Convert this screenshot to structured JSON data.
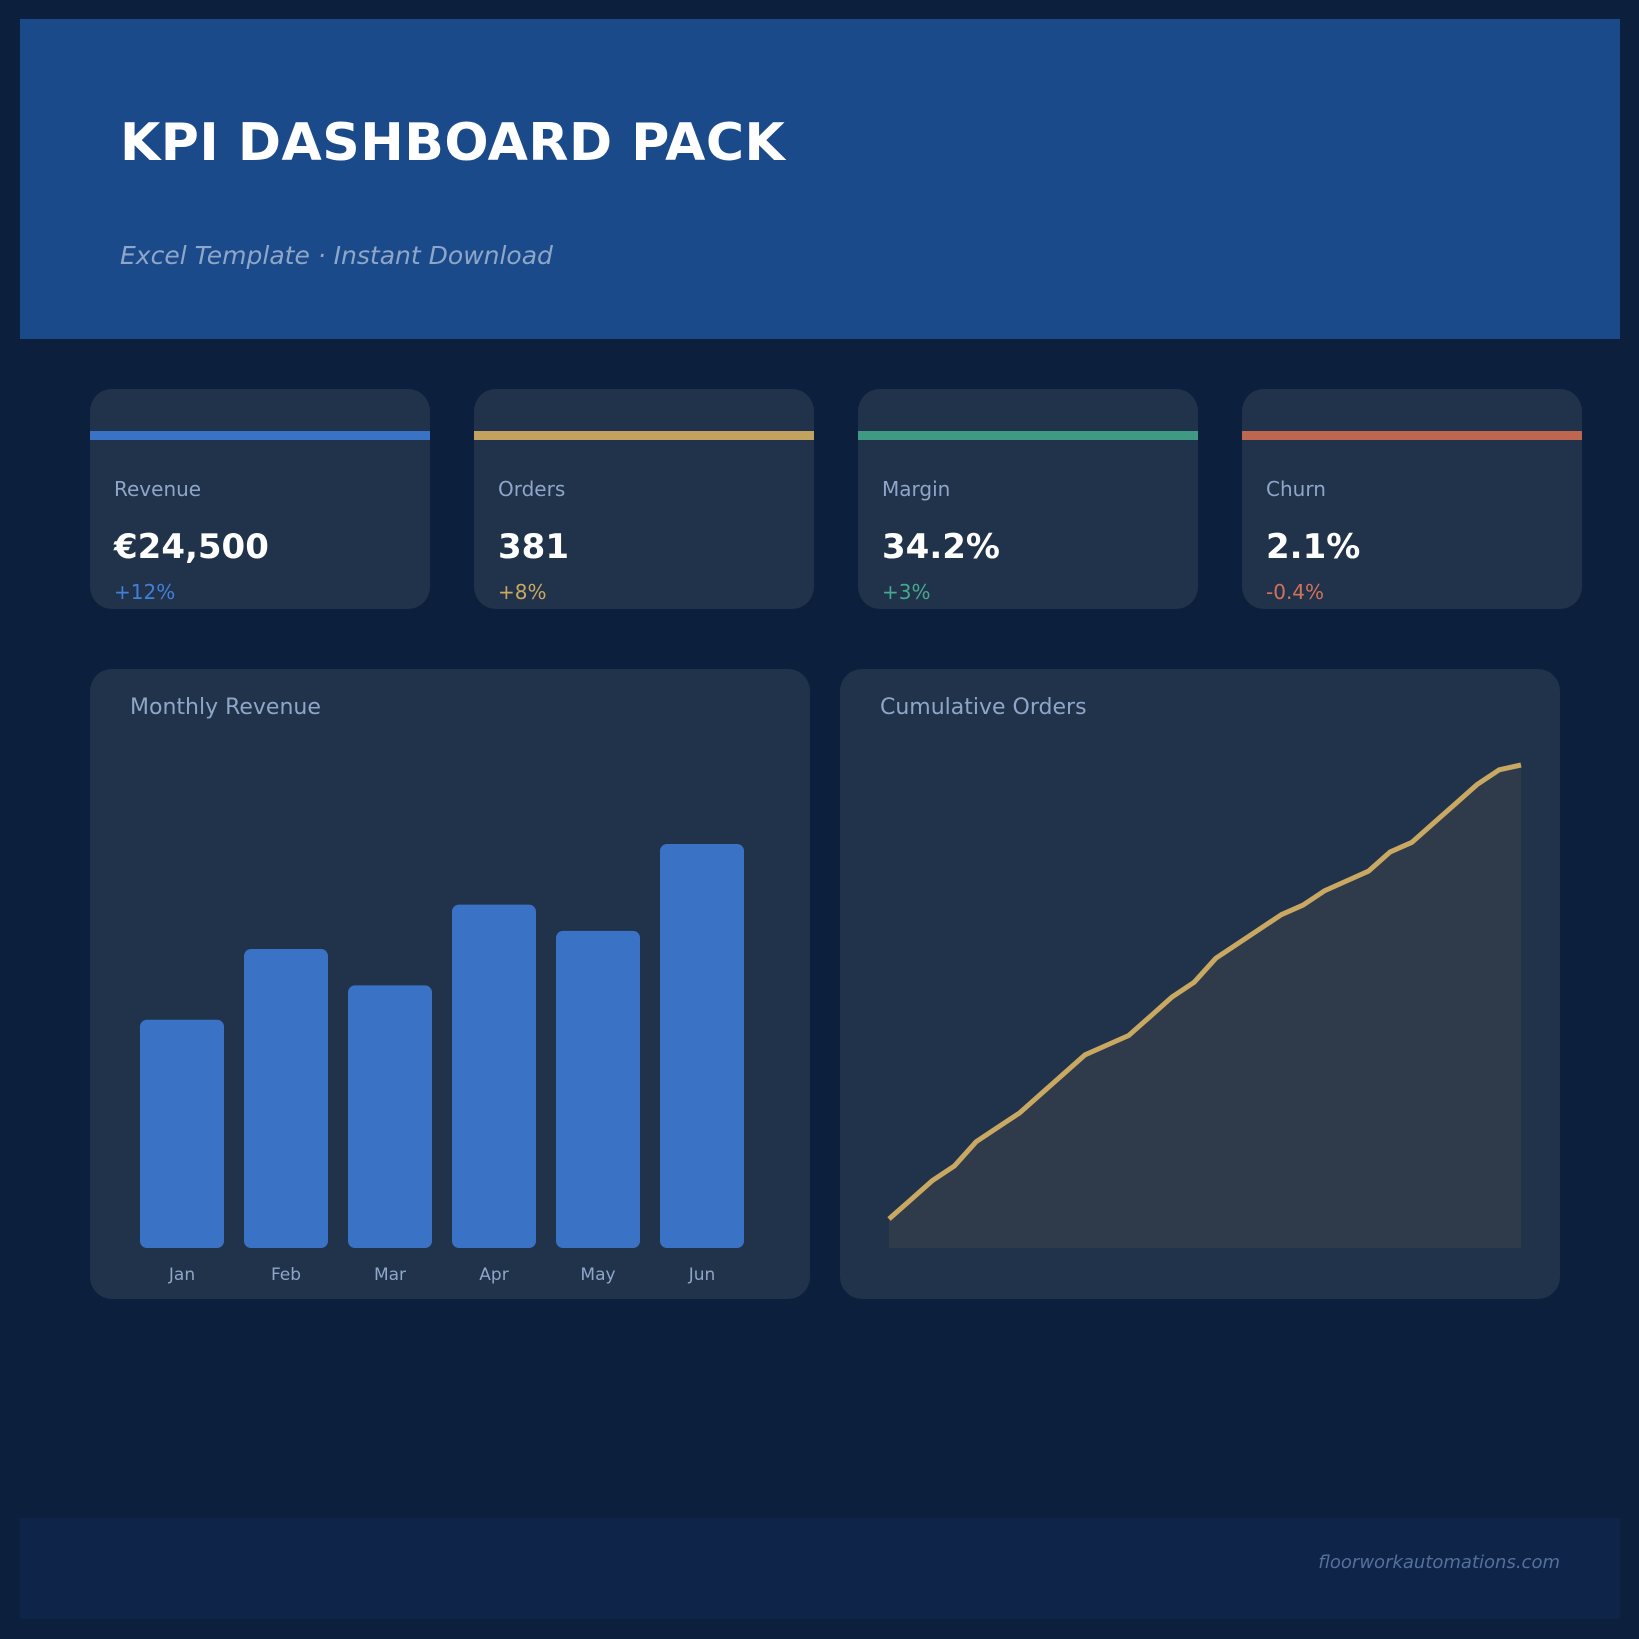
{
  "header": {
    "title": "KPI DASHBOARD PACK",
    "subtitle": "Excel Template  ·  Instant Download"
  },
  "kpis": [
    {
      "label": "Revenue",
      "value": "€24,500",
      "delta": "+12%",
      "accent_color": "#3a73c6",
      "delta_color": "#4180d8"
    },
    {
      "label": "Orders",
      "value": "381",
      "delta": "+8%",
      "accent_color": "#c3a15e",
      "delta_color": "#c9a862"
    },
    {
      "label": "Margin",
      "value": "34.2%",
      "delta": "+3%",
      "accent_color": "#3f9a84",
      "delta_color": "#45a98f"
    },
    {
      "label": "Churn",
      "value": "2.1%",
      "delta": "-0.4%",
      "accent_color": "#bf6650",
      "delta_color": "#d3715a"
    }
  ],
  "charts": {
    "monthly_revenue": {
      "title": "Monthly Revenue"
    },
    "cumulative_orders": {
      "title": "Cumulative Orders"
    }
  },
  "chart_data": [
    {
      "type": "bar",
      "title": "Monthly Revenue",
      "categories": [
        "Jan",
        "Feb",
        "Mar",
        "Apr",
        "May",
        "Jun"
      ],
      "values": [
        56.5,
        74,
        65,
        85,
        78.5,
        100
      ],
      "ylim": [
        0,
        100
      ],
      "grid": false,
      "bar_color": "#3a73c6"
    },
    {
      "type": "area",
      "title": "Cumulative Orders",
      "x": [
        1,
        2,
        3,
        4,
        5,
        6,
        7,
        8,
        9,
        10,
        11,
        12,
        13,
        14,
        15,
        16,
        17,
        18,
        19,
        20,
        21,
        22,
        23,
        24,
        25,
        26,
        27,
        28,
        29,
        30
      ],
      "values": [
        6,
        10,
        14,
        17,
        22,
        25,
        28,
        32,
        36,
        40,
        42,
        44,
        48,
        52,
        55,
        60,
        63,
        66,
        69,
        71,
        74,
        76,
        78,
        82,
        84,
        88,
        92,
        96,
        99,
        100
      ],
      "ylim": [
        0,
        106
      ],
      "grid": false,
      "line_color": "#c9a862",
      "fill_color": "#2f3b4b"
    }
  ],
  "footer": {
    "url": "floorworkautomations.com"
  }
}
